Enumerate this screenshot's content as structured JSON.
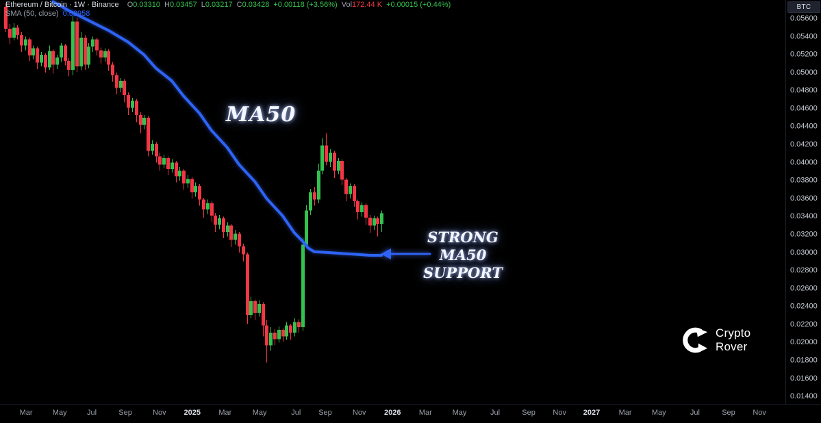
{
  "window": {
    "symbol_button": "BTC"
  },
  "legend": {
    "title": "Ethereum / Bitcoin · 1W · Binance",
    "o_label": "O",
    "o": "0.03310",
    "h_label": "H",
    "h": "0.03457",
    "l_label": "L",
    "l": "0.03217",
    "c_label": "C",
    "c": "0.03428",
    "change": "+0.00118 (+3.56%)",
    "vol_label": "Vol",
    "vol": "172.44 K",
    "vol_change": "+0.00015 (+0.44%)",
    "sma_label": "SMA (50, close)",
    "sma_value": "0.02958"
  },
  "annotations": {
    "ma50_label": "MA50",
    "support_line1": "STRONG MA50",
    "support_line2": "SUPPORT"
  },
  "watermark": {
    "line1": "Crypto",
    "line2": "Rover"
  },
  "colors": {
    "bg": "#000000",
    "up": "#33c24e",
    "down": "#f23645",
    "ma": "#2e63f6",
    "axis_text": "#c4c8d0",
    "month_text": "#9aa0aa",
    "year_text": "#dadde3"
  },
  "chart_data": {
    "type": "candlestick",
    "title": "Ethereum / Bitcoin",
    "timeframe": "1W",
    "exchange": "Binance",
    "last": {
      "open": 0.0331,
      "high": 0.03457,
      "low": 0.03217,
      "close": 0.03428,
      "change": "+0.00118 (+3.56%)"
    },
    "y_axis": {
      "min": 0.014,
      "max": 0.056,
      "step": 0.002,
      "labels": [
        "0.05600",
        "0.05400",
        "0.05200",
        "0.05000",
        "0.04800",
        "0.04600",
        "0.04400",
        "0.04200",
        "0.04000",
        "0.03800",
        "0.03600",
        "0.03400",
        "0.03200",
        "0.03000",
        "0.02800",
        "0.02600",
        "0.02400",
        "0.02200",
        "0.02000",
        "0.01800",
        "0.01600",
        "0.01400"
      ]
    },
    "x_axis": {
      "ticks": [
        {
          "label": "Mar",
          "week": 5.2,
          "major": false
        },
        {
          "label": "May",
          "week": 13.7,
          "major": false
        },
        {
          "label": "Jul",
          "week": 21.8,
          "major": false
        },
        {
          "label": "Sep",
          "week": 30.3,
          "major": false
        },
        {
          "label": "Nov",
          "week": 38.9,
          "major": false
        },
        {
          "label": "2025",
          "week": 47.2,
          "major": true
        },
        {
          "label": "Mar",
          "week": 55.5,
          "major": false
        },
        {
          "label": "May",
          "week": 64.2,
          "major": false
        },
        {
          "label": "Jul",
          "week": 73.4,
          "major": false
        },
        {
          "label": "Sep",
          "week": 80.8,
          "major": false
        },
        {
          "label": "Nov",
          "week": 89.4,
          "major": false
        },
        {
          "label": "2026",
          "week": 97.8,
          "major": true
        },
        {
          "label": "Mar",
          "week": 106.1,
          "major": false
        },
        {
          "label": "May",
          "week": 114.7,
          "major": false
        },
        {
          "label": "Jul",
          "week": 123.7,
          "major": false
        },
        {
          "label": "Sep",
          "week": 132.2,
          "major": false
        },
        {
          "label": "Nov",
          "week": 140.0,
          "major": false
        },
        {
          "label": "2027",
          "week": 148.1,
          "major": true
        },
        {
          "label": "Mar",
          "week": 156.6,
          "major": false
        },
        {
          "label": "May",
          "week": 165.1,
          "major": false
        },
        {
          "label": "Jul",
          "week": 174.2,
          "major": false
        },
        {
          "label": "Sep",
          "week": 182.7,
          "major": false
        },
        {
          "label": "Nov",
          "week": 190.5,
          "major": false
        }
      ]
    },
    "candles": [
      [
        0.0572,
        0.0576,
        0.0544,
        0.0548
      ],
      [
        0.0548,
        0.0553,
        0.0531,
        0.0538
      ],
      [
        0.0538,
        0.0554,
        0.0535,
        0.0549
      ],
      [
        0.0549,
        0.0552,
        0.0536,
        0.0541
      ],
      [
        0.0541,
        0.0544,
        0.0522,
        0.0529
      ],
      [
        0.0529,
        0.0539,
        0.0524,
        0.0536
      ],
      [
        0.0536,
        0.0538,
        0.0512,
        0.0518
      ],
      [
        0.0518,
        0.0529,
        0.0514,
        0.0526
      ],
      [
        0.0526,
        0.0528,
        0.0503,
        0.051
      ],
      [
        0.051,
        0.0522,
        0.0506,
        0.0519
      ],
      [
        0.0519,
        0.0521,
        0.0499,
        0.0505
      ],
      [
        0.0505,
        0.0529,
        0.0502,
        0.0523
      ],
      [
        0.0523,
        0.0525,
        0.0498,
        0.0508
      ],
      [
        0.0508,
        0.0519,
        0.0503,
        0.0516
      ],
      [
        0.0516,
        0.0532,
        0.0511,
        0.0529
      ],
      [
        0.0529,
        0.0531,
        0.0507,
        0.0512
      ],
      [
        0.0512,
        0.0515,
        0.0495,
        0.0502
      ],
      [
        0.0502,
        0.0562,
        0.0496,
        0.0556
      ],
      [
        0.0556,
        0.056,
        0.05,
        0.0506
      ],
      [
        0.0506,
        0.0544,
        0.0502,
        0.0538
      ],
      [
        0.0538,
        0.0541,
        0.0502,
        0.0508
      ],
      [
        0.0508,
        0.0532,
        0.0504,
        0.0528
      ],
      [
        0.0528,
        0.0539,
        0.0522,
        0.0536
      ],
      [
        0.0536,
        0.0538,
        0.0518,
        0.0524
      ],
      [
        0.0524,
        0.0527,
        0.0509,
        0.0516
      ],
      [
        0.0516,
        0.0526,
        0.0511,
        0.0523
      ],
      [
        0.0523,
        0.0525,
        0.0501,
        0.0508
      ],
      [
        0.0508,
        0.0511,
        0.0489,
        0.0496
      ],
      [
        0.0496,
        0.0499,
        0.0475,
        0.0482
      ],
      [
        0.0482,
        0.0493,
        0.0477,
        0.049
      ],
      [
        0.049,
        0.0492,
        0.0466,
        0.0474
      ],
      [
        0.0474,
        0.0477,
        0.0452,
        0.046
      ],
      [
        0.046,
        0.0471,
        0.0455,
        0.0468
      ],
      [
        0.0468,
        0.047,
        0.0444,
        0.0452
      ],
      [
        0.0452,
        0.0455,
        0.0432,
        0.0441
      ],
      [
        0.0441,
        0.0452,
        0.0436,
        0.0449
      ],
      [
        0.0449,
        0.0451,
        0.0406,
        0.0412
      ],
      [
        0.0412,
        0.0424,
        0.0408,
        0.042
      ],
      [
        0.042,
        0.0422,
        0.0399,
        0.0406
      ],
      [
        0.0406,
        0.041,
        0.039,
        0.0397
      ],
      [
        0.0397,
        0.0408,
        0.0393,
        0.0404
      ],
      [
        0.0404,
        0.0406,
        0.0385,
        0.0392
      ],
      [
        0.0392,
        0.0403,
        0.0388,
        0.0399
      ],
      [
        0.0399,
        0.0401,
        0.0377,
        0.0384
      ],
      [
        0.0384,
        0.0394,
        0.0379,
        0.039
      ],
      [
        0.039,
        0.0392,
        0.0369,
        0.0376
      ],
      [
        0.0376,
        0.0385,
        0.0371,
        0.0381
      ],
      [
        0.0381,
        0.0383,
        0.0359,
        0.0366
      ],
      [
        0.0366,
        0.0377,
        0.0361,
        0.0373
      ],
      [
        0.0373,
        0.0375,
        0.0351,
        0.0358
      ],
      [
        0.0358,
        0.036,
        0.0338,
        0.0347
      ],
      [
        0.0347,
        0.0358,
        0.0342,
        0.0354
      ],
      [
        0.0354,
        0.0356,
        0.0333,
        0.034
      ],
      [
        0.034,
        0.0343,
        0.0322,
        0.033
      ],
      [
        0.033,
        0.0341,
        0.0325,
        0.0337
      ],
      [
        0.0337,
        0.0339,
        0.0315,
        0.0322
      ],
      [
        0.0322,
        0.0333,
        0.0317,
        0.0329
      ],
      [
        0.0329,
        0.0331,
        0.0305,
        0.0313
      ],
      [
        0.0313,
        0.0324,
        0.0308,
        0.032
      ],
      [
        0.032,
        0.0322,
        0.0299,
        0.0306
      ],
      [
        0.0306,
        0.0309,
        0.0289,
        0.0297
      ],
      [
        0.0297,
        0.0299,
        0.022,
        0.023
      ],
      [
        0.023,
        0.025,
        0.0226,
        0.0245
      ],
      [
        0.0245,
        0.0247,
        0.0224,
        0.0232
      ],
      [
        0.0232,
        0.0246,
        0.0228,
        0.0242
      ],
      [
        0.0242,
        0.0244,
        0.0206,
        0.0218
      ],
      [
        0.0218,
        0.0224,
        0.0177,
        0.0196
      ],
      [
        0.0196,
        0.0216,
        0.019,
        0.021
      ],
      [
        0.021,
        0.0214,
        0.0196,
        0.0203
      ],
      [
        0.0203,
        0.0217,
        0.0199,
        0.0213
      ],
      [
        0.0213,
        0.0215,
        0.02,
        0.0206
      ],
      [
        0.0206,
        0.0222,
        0.0202,
        0.0218
      ],
      [
        0.0218,
        0.022,
        0.0202,
        0.021
      ],
      [
        0.021,
        0.0226,
        0.0206,
        0.0222
      ],
      [
        0.0222,
        0.0225,
        0.021,
        0.0216
      ],
      [
        0.0216,
        0.0315,
        0.0212,
        0.0308
      ],
      [
        0.0308,
        0.0352,
        0.0304,
        0.0346
      ],
      [
        0.0346,
        0.037,
        0.0341,
        0.0366
      ],
      [
        0.0366,
        0.0372,
        0.0351,
        0.0358
      ],
      [
        0.0358,
        0.0398,
        0.0354,
        0.039
      ],
      [
        0.039,
        0.0426,
        0.0386,
        0.0418
      ],
      [
        0.0418,
        0.0432,
        0.0396,
        0.04
      ],
      [
        0.04,
        0.0414,
        0.0394,
        0.041
      ],
      [
        0.041,
        0.0412,
        0.0382,
        0.039
      ],
      [
        0.039,
        0.0404,
        0.0386,
        0.0401
      ],
      [
        0.0401,
        0.0403,
        0.0374,
        0.038
      ],
      [
        0.038,
        0.0382,
        0.0356,
        0.0364
      ],
      [
        0.0364,
        0.0376,
        0.0359,
        0.0373
      ],
      [
        0.0373,
        0.0375,
        0.035,
        0.0356
      ],
      [
        0.0356,
        0.0358,
        0.0336,
        0.0344
      ],
      [
        0.0344,
        0.0355,
        0.0339,
        0.0352
      ],
      [
        0.0352,
        0.0354,
        0.033,
        0.0338
      ],
      [
        0.0338,
        0.0341,
        0.0321,
        0.0329
      ],
      [
        0.0329,
        0.034,
        0.0324,
        0.0337
      ],
      [
        0.0337,
        0.0339,
        0.0317,
        0.0331
      ],
      [
        0.0331,
        0.03457,
        0.03217,
        0.03428
      ]
    ],
    "ma50": {
      "name": "SMA 50",
      "color": "#2e63f6",
      "points": [
        [
          12,
          0.0578
        ],
        [
          16,
          0.0568
        ],
        [
          21,
          0.0557
        ],
        [
          26,
          0.0546
        ],
        [
          31,
          0.0533
        ],
        [
          35,
          0.0519
        ],
        [
          38,
          0.0504
        ],
        [
          42,
          0.049
        ],
        [
          45,
          0.0473
        ],
        [
          49,
          0.0454
        ],
        [
          52,
          0.0435
        ],
        [
          56,
          0.0416
        ],
        [
          59,
          0.0397
        ],
        [
          63,
          0.0378
        ],
        [
          66,
          0.0359
        ],
        [
          70,
          0.034
        ],
        [
          73,
          0.0321
        ],
        [
          75,
          0.0312
        ],
        [
          76.5,
          0.0304
        ],
        [
          78,
          0.03
        ],
        [
          82,
          0.0299
        ],
        [
          85,
          0.0298
        ],
        [
          89,
          0.0297
        ],
        [
          92,
          0.0296
        ],
        [
          95,
          0.0296
        ]
      ]
    }
  }
}
